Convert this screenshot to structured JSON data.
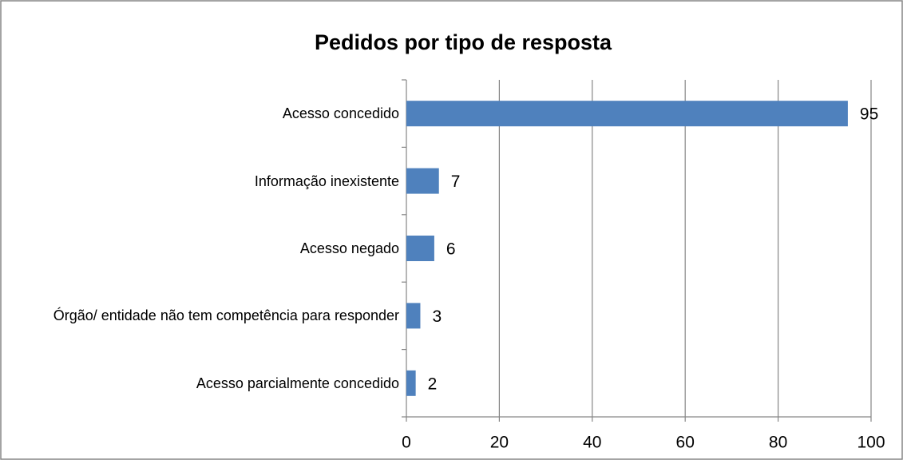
{
  "chart_data": {
    "type": "bar",
    "orientation": "horizontal",
    "title": "Pedidos por tipo de resposta",
    "categories": [
      "Acesso concedido",
      "Informação inexistente",
      "Acesso negado",
      "Órgão/ entidade não tem competência para responder",
      "Acesso parcialmente concedido"
    ],
    "values": [
      95,
      7,
      6,
      3,
      2
    ],
    "color": "#4f81bd",
    "xlim": [
      0,
      100
    ],
    "xticks": [
      0,
      20,
      40,
      60,
      80,
      100
    ],
    "grid": true
  }
}
